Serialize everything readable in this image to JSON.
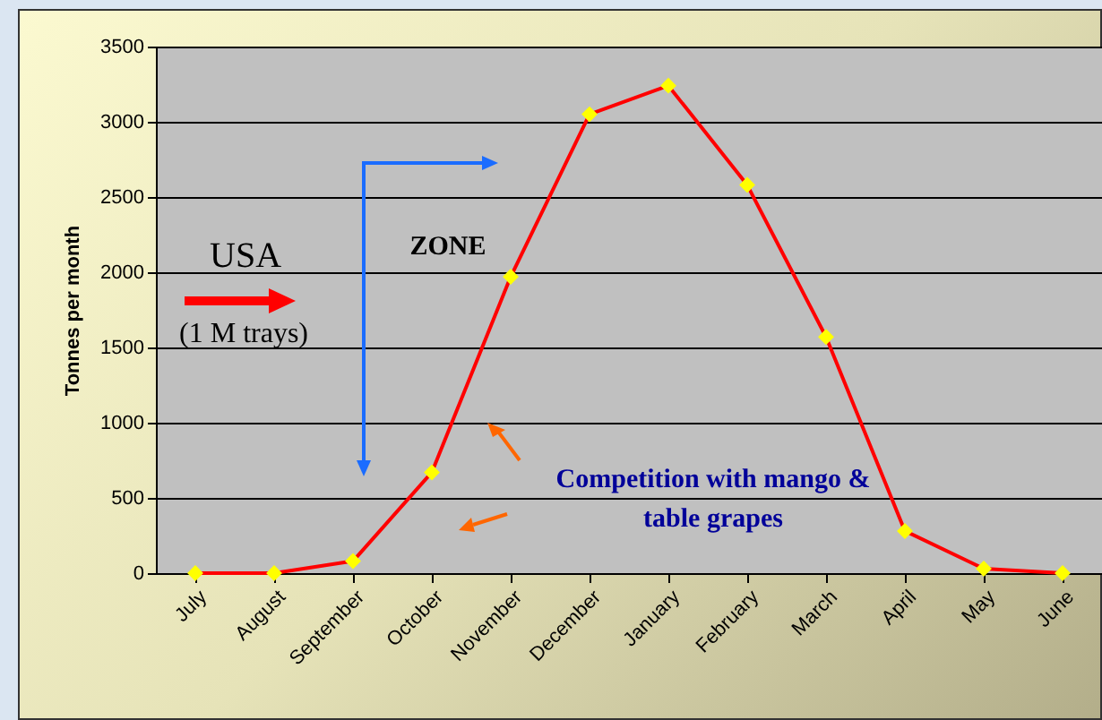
{
  "chart_data": {
    "type": "line",
    "ylabel": "Tonnes per month",
    "categories": [
      "July",
      "August",
      "September",
      "October",
      "November",
      "December",
      "January",
      "February",
      "March",
      "April",
      "May",
      "June"
    ],
    "series": [
      {
        "color": "#ff0000",
        "values": [
          0,
          0,
          80,
          670,
          1970,
          3050,
          3240,
          2580,
          1570,
          280,
          30,
          0
        ]
      }
    ],
    "ylim": [
      0,
      3500
    ],
    "yticks": [
      0,
      500,
      1000,
      1500,
      2000,
      2500,
      3000,
      3500
    ],
    "grid": "y",
    "marker": "diamond",
    "annotations": [
      "USA",
      "(1 M trays)",
      "ZONE",
      "Competition with mango & table grapes"
    ]
  }
}
